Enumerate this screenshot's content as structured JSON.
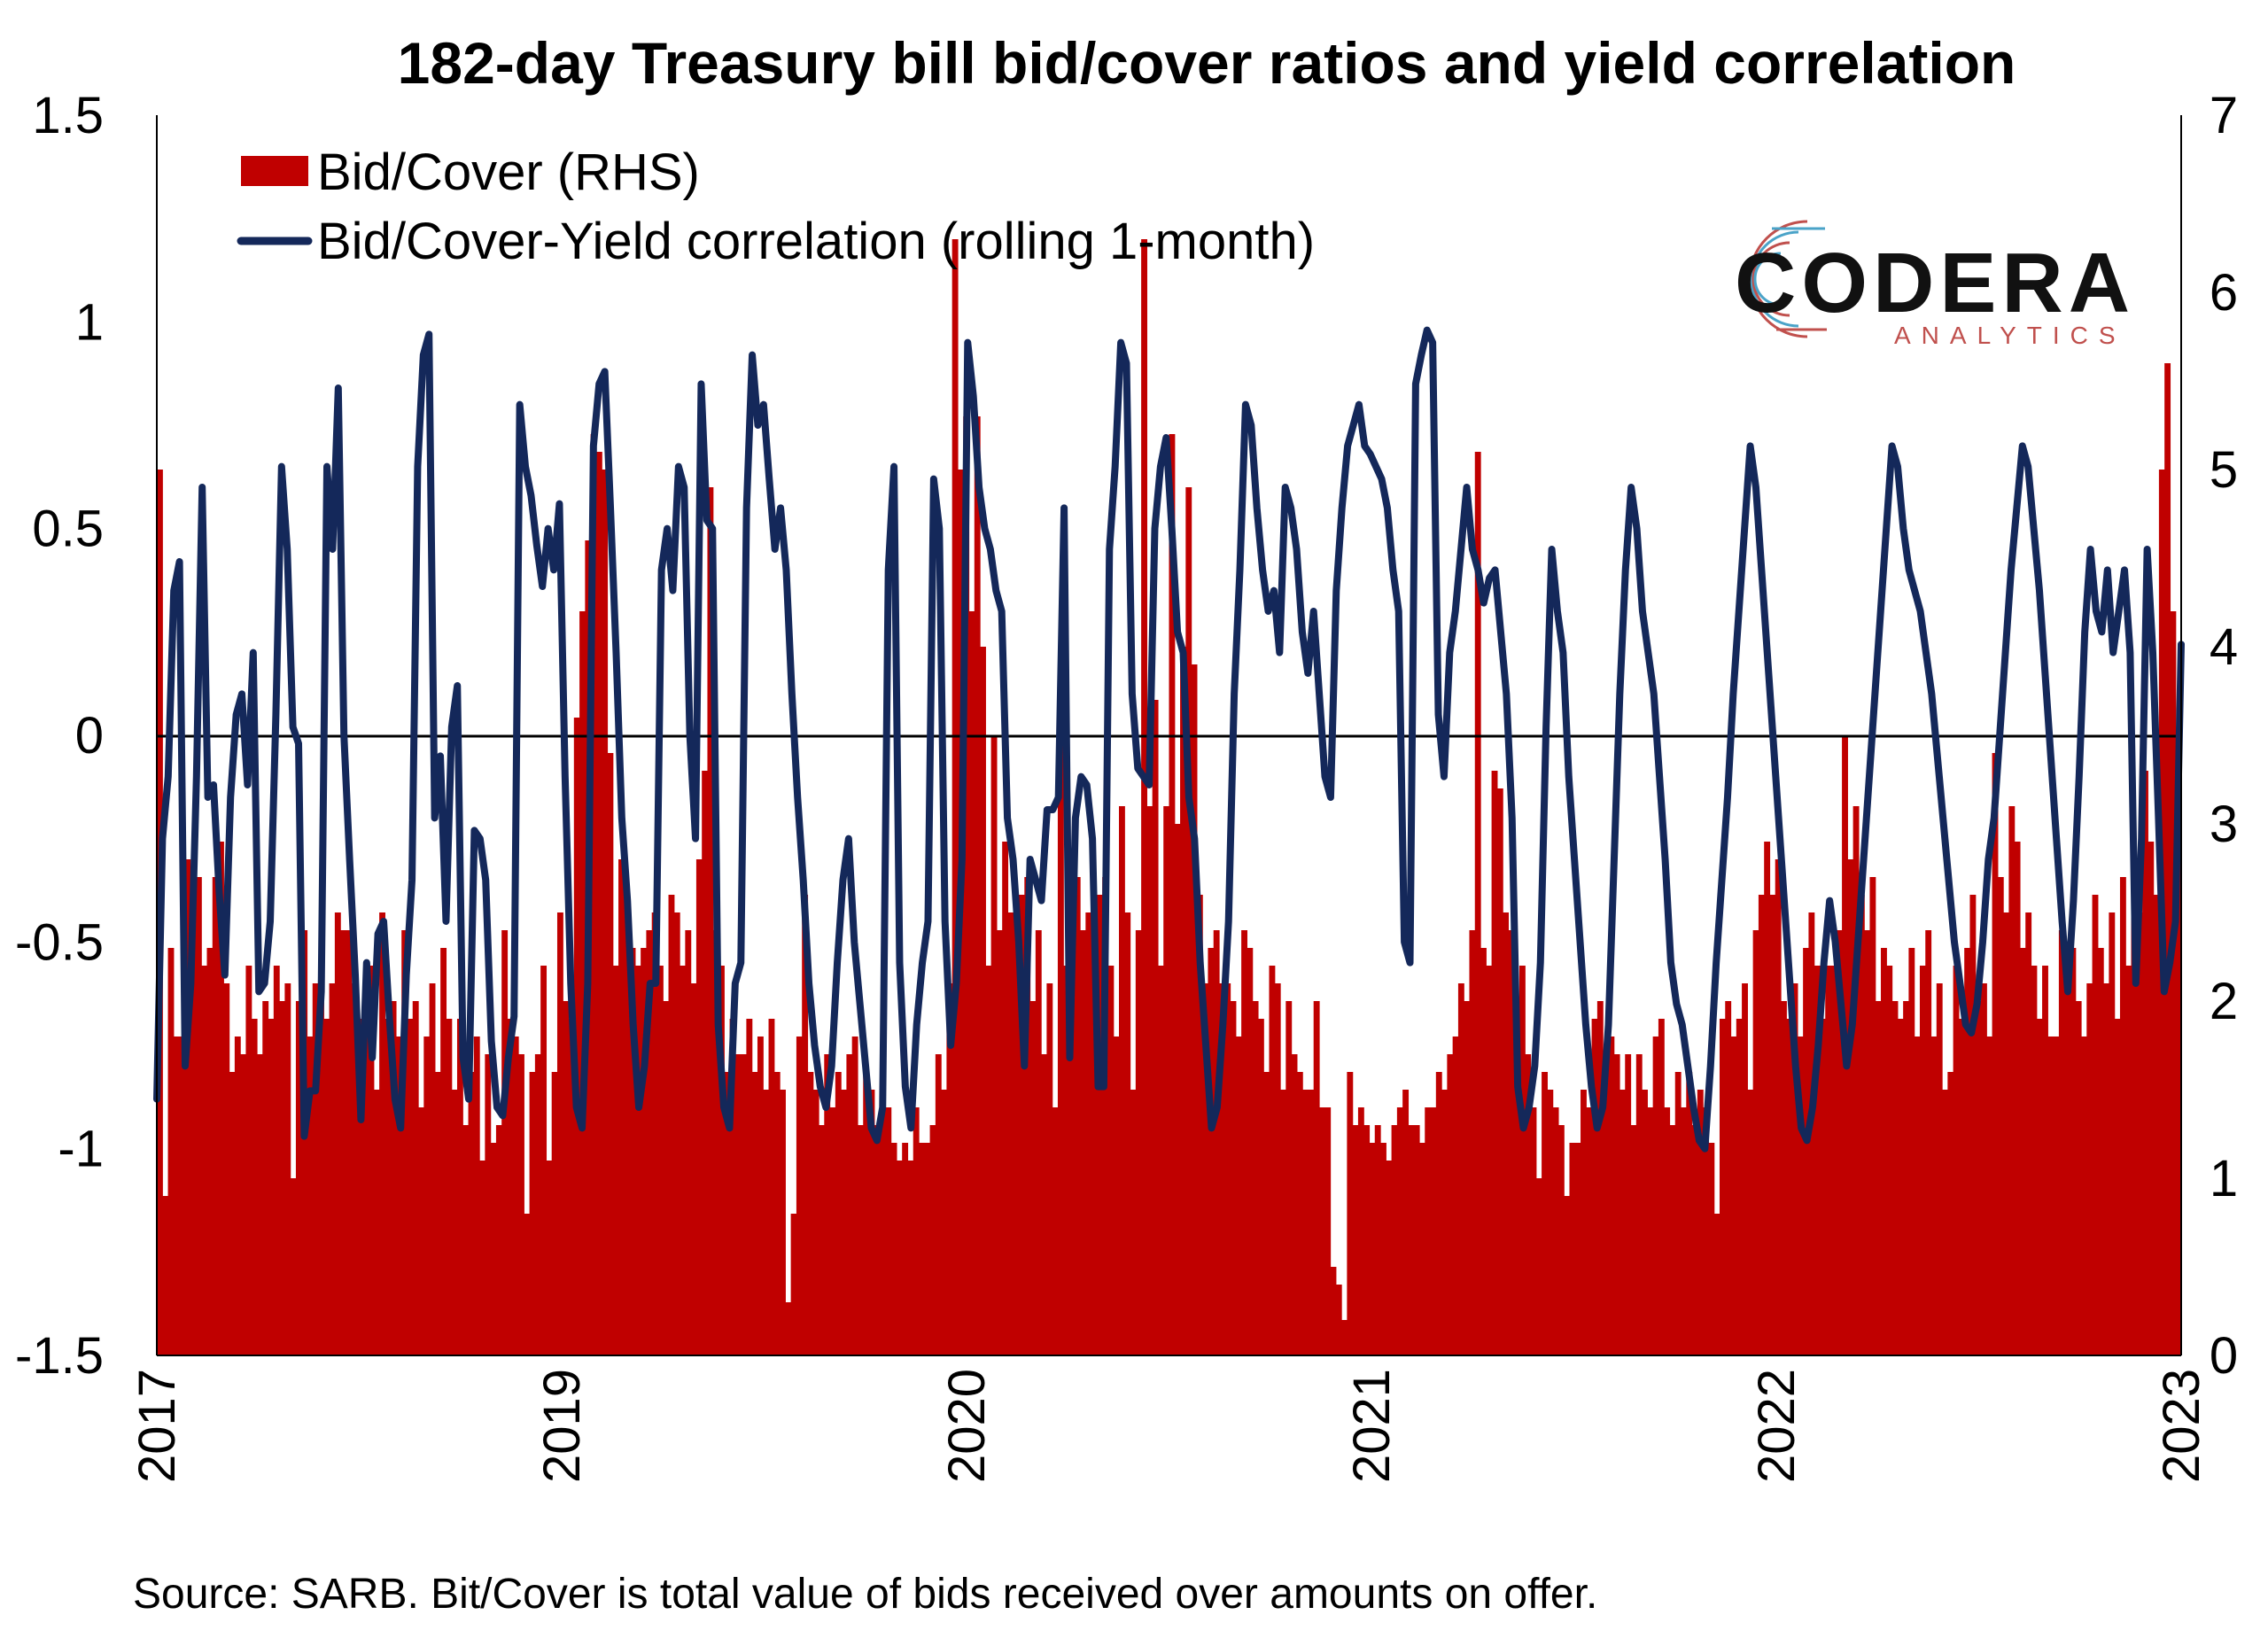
{
  "chart_data": {
    "type": "bar+line",
    "title": "182-day Treasury bill bid/cover ratios and yield correlation",
    "source": "Source: SARB. Bit/Cover is total value of bids received over amounts on offer.",
    "left_axis": {
      "ylim": [
        -1.5,
        1.5
      ],
      "ticks": [
        "1.5",
        "1",
        "0.5",
        "0",
        "-0.5",
        "-1",
        "-1.5"
      ]
    },
    "right_axis": {
      "ylim": [
        0,
        7
      ],
      "ticks": [
        "7",
        "6",
        "5",
        "4",
        "3",
        "2",
        "1",
        "0"
      ]
    },
    "x_axis": {
      "ticks": [
        "2017",
        "2019",
        "2020",
        "2021",
        "2022",
        "2023"
      ]
    },
    "legend": {
      "position": "top-left",
      "entries": [
        "Bid/Cover (RHS)",
        "Bid/Cover-Yield correlation (rolling 1-month)"
      ]
    },
    "colors": {
      "bars": "#c00000",
      "line": "#14285a",
      "zero_line": "#000000"
    },
    "series": [
      {
        "name": "Bid/Cover (RHS)",
        "axis": "right",
        "type": "bar",
        "values": [
          5.0,
          0.9,
          2.3,
          1.8,
          1.8,
          2.8,
          2.6,
          2.7,
          2.2,
          2.3,
          2.7,
          2.9,
          2.1,
          1.6,
          1.8,
          1.7,
          2.2,
          1.9,
          1.7,
          2.0,
          1.9,
          2.2,
          2.0,
          2.1,
          1.0,
          2.0,
          2.4,
          1.8,
          2.1,
          2.0,
          1.9,
          2.1,
          2.5,
          2.4,
          2.4,
          2.1,
          1.9,
          2.0,
          2.2,
          1.5,
          2.5,
          1.9,
          2.0,
          1.8,
          2.4,
          1.9,
          2.0,
          1.4,
          1.8,
          2.1,
          1.6,
          2.3,
          1.9,
          1.5,
          1.9,
          1.3,
          1.6,
          1.8,
          1.1,
          1.7,
          1.2,
          1.3,
          2.4,
          1.9,
          1.8,
          1.7,
          0.8,
          1.6,
          1.7,
          2.2,
          1.1,
          1.6,
          2.5,
          2.0,
          1.9,
          3.6,
          4.2,
          4.6,
          5.2,
          5.1,
          5.0,
          3.4,
          2.2,
          2.8,
          2.6,
          2.3,
          2.2,
          2.3,
          2.4,
          2.5,
          2.2,
          2.0,
          2.6,
          2.5,
          2.2,
          2.4,
          2.1,
          2.8,
          3.3,
          4.9,
          2.4,
          2.2,
          1.6,
          1.9,
          1.7,
          1.7,
          1.9,
          1.6,
          1.8,
          1.5,
          1.9,
          1.6,
          1.5,
          0.3,
          0.8,
          1.8,
          2.6,
          1.6,
          1.5,
          1.3,
          1.7,
          1.4,
          1.6,
          1.5,
          1.7,
          1.8,
          1.3,
          1.6,
          1.5,
          1.3,
          1.6,
          1.4,
          1.2,
          1.1,
          1.2,
          1.1,
          1.4,
          1.2,
          1.2,
          1.3,
          1.7,
          1.5,
          2.1,
          6.3,
          5.0,
          5.3,
          4.2,
          5.3,
          4.0,
          2.2,
          3.5,
          2.4,
          2.9,
          2.5,
          2.5,
          2.6,
          2.7,
          2.0,
          2.4,
          1.7,
          2.1,
          1.4,
          3.8,
          2.2,
          2.3,
          2.7,
          2.4,
          2.5,
          2.3,
          2.6,
          2.7,
          2.2,
          1.8,
          3.1,
          2.5,
          1.5,
          2.4,
          6.3,
          3.1,
          3.7,
          2.2,
          3.1,
          5.2,
          3.0,
          4.0,
          4.9,
          3.9,
          2.6,
          2.1,
          2.3,
          2.4,
          2.1,
          2.1,
          2.0,
          1.8,
          2.4,
          2.3,
          2.0,
          1.9,
          1.6,
          2.2,
          2.1,
          1.5,
          2.0,
          1.7,
          1.6,
          1.5,
          1.5,
          2.0,
          1.4,
          1.4,
          0.5,
          0.4,
          0.2,
          1.6,
          1.3,
          1.4,
          1.3,
          1.2,
          1.3,
          1.2,
          1.1,
          1.3,
          1.4,
          1.5,
          1.3,
          1.3,
          1.2,
          1.4,
          1.4,
          1.6,
          1.5,
          1.7,
          1.8,
          2.1,
          2.0,
          2.4,
          5.1,
          2.3,
          2.2,
          3.3,
          3.2,
          2.5,
          2.4,
          1.6,
          2.2,
          1.7,
          1.4,
          1.0,
          1.6,
          1.5,
          1.4,
          1.3,
          0.9,
          1.2,
          1.2,
          1.5,
          1.4,
          1.9,
          2.0,
          1.6,
          1.8,
          1.7,
          1.5,
          1.7,
          1.3,
          1.7,
          1.5,
          1.4,
          1.8,
          1.9,
          1.4,
          1.3,
          1.6,
          1.4,
          1.6,
          1.3,
          1.5,
          1.4,
          1.2,
          0.8,
          1.9,
          2.0,
          1.8,
          1.9,
          2.1,
          1.5,
          2.4,
          2.6,
          2.9,
          2.6,
          2.8,
          2.0,
          1.9,
          2.1,
          1.8,
          2.3,
          2.5,
          2.2,
          1.9,
          2.2,
          2.2,
          2.4,
          3.5,
          2.8,
          3.1,
          2.6,
          2.4,
          2.7,
          2.0,
          2.3,
          2.2,
          2.0,
          1.9,
          2.0,
          2.3,
          1.8,
          2.2,
          2.4,
          1.8,
          2.1,
          1.5,
          1.6,
          2.2,
          1.9,
          2.3,
          2.6,
          2.0,
          2.1,
          1.8,
          3.4,
          2.7,
          2.5,
          3.1,
          2.9,
          2.3,
          2.5,
          2.2,
          1.9,
          2.2,
          1.8,
          1.8,
          2.4,
          2.2,
          2.3,
          2.0,
          1.8,
          2.1,
          2.6,
          2.3,
          2.1,
          2.5,
          1.9,
          2.7,
          2.2,
          2.6,
          2.5,
          3.3,
          2.9,
          2.6,
          5.0,
          5.6,
          4.2,
          3.0
        ]
      },
      {
        "name": "Bid/Cover-Yield correlation (rolling 1-month)",
        "axis": "left",
        "type": "line",
        "values": [
          -0.88,
          -0.25,
          -0.1,
          0.35,
          0.42,
          -0.8,
          -0.6,
          -0.1,
          0.6,
          -0.15,
          -0.12,
          -0.38,
          -0.58,
          -0.15,
          0.05,
          0.1,
          -0.12,
          0.2,
          -0.62,
          -0.6,
          -0.45,
          0.05,
          0.65,
          0.45,
          0.02,
          -0.02,
          -0.97,
          -0.86,
          -0.86,
          -0.62,
          0.65,
          0.45,
          0.84,
          0.0,
          -0.3,
          -0.58,
          -0.93,
          -0.55,
          -0.78,
          -0.48,
          -0.45,
          -0.68,
          -0.88,
          -0.95,
          -0.58,
          -0.35,
          0.65,
          0.92,
          0.97,
          -0.2,
          -0.05,
          -0.45,
          0.02,
          0.12,
          -0.78,
          -0.88,
          -0.23,
          -0.25,
          -0.35,
          -0.74,
          -0.9,
          -0.92,
          -0.78,
          -0.68,
          0.8,
          0.65,
          0.58,
          0.46,
          0.36,
          0.5,
          0.4,
          0.56,
          -0.1,
          -0.6,
          -0.9,
          -0.95,
          -0.6,
          0.7,
          0.85,
          0.88,
          0.55,
          0.2,
          -0.2,
          -0.4,
          -0.7,
          -0.9,
          -0.8,
          -0.6,
          -0.6,
          0.4,
          0.5,
          0.35,
          0.65,
          0.6,
          0.0,
          -0.25,
          0.85,
          0.52,
          0.5,
          -0.7,
          -0.9,
          -0.95,
          -0.6,
          -0.55,
          0.55,
          0.92,
          0.75,
          0.8,
          0.62,
          0.45,
          0.55,
          0.4,
          0.1,
          -0.15,
          -0.35,
          -0.6,
          -0.75,
          -0.85,
          -0.9,
          -0.8,
          -0.55,
          -0.35,
          -0.25,
          -0.5,
          -0.65,
          -0.8,
          -0.95,
          -0.98,
          -0.9,
          0.4,
          0.65,
          -0.55,
          -0.85,
          -0.95,
          -0.7,
          -0.55,
          -0.45,
          0.62,
          0.5,
          -0.45,
          -0.75,
          -0.6,
          -0.3,
          0.95,
          0.82,
          0.6,
          0.5,
          0.45,
          0.35,
          0.3,
          -0.2,
          -0.3,
          -0.5,
          -0.8,
          -0.3,
          -0.35,
          -0.4,
          -0.18,
          -0.18,
          -0.15,
          0.55,
          -0.78,
          -0.2,
          -0.1,
          -0.12,
          -0.25,
          -0.85,
          -0.85,
          0.45,
          0.65,
          0.95,
          0.9,
          0.1,
          -0.08,
          -0.1,
          -0.12,
          0.5,
          0.65,
          0.72,
          0.5,
          0.25,
          0.2,
          -0.15,
          -0.25,
          -0.55,
          -0.75,
          -0.95,
          -0.9,
          -0.7,
          -0.45,
          0.1,
          0.4,
          0.8,
          0.75,
          0.55,
          0.4,
          0.3,
          0.35,
          0.2,
          0.6,
          0.55,
          0.45,
          0.25,
          0.15,
          0.3,
          0.1,
          -0.1,
          -0.15,
          0.35,
          0.55,
          0.7,
          0.75,
          0.8,
          0.7,
          0.68,
          0.65,
          0.62,
          0.55,
          0.4,
          0.3,
          -0.5,
          -0.55,
          0.85,
          0.92,
          0.98,
          0.95,
          0.05,
          -0.1,
          0.2,
          0.3,
          0.45,
          0.6,
          0.45,
          0.4,
          0.32,
          0.38,
          0.4,
          0.25,
          0.1,
          -0.2,
          -0.85,
          -0.95,
          -0.9,
          -0.8,
          -0.55,
          0.02,
          0.45,
          0.3,
          0.2,
          -0.1,
          -0.3,
          -0.5,
          -0.7,
          -0.85,
          -0.95,
          -0.9,
          -0.7,
          -0.3,
          0.1,
          0.4,
          0.6,
          0.5,
          0.3,
          0.2,
          0.1,
          -0.1,
          -0.3,
          -0.55,
          -0.65,
          -0.7,
          -0.8,
          -0.9,
          -0.98,
          -1.0,
          -0.8,
          -0.55,
          -0.35,
          -0.15,
          0.1,
          0.3,
          0.5,
          0.7,
          0.6,
          0.4,
          0.2,
          0.0,
          -0.2,
          -0.4,
          -0.6,
          -0.8,
          -0.95,
          -0.98,
          -0.9,
          -0.75,
          -0.55,
          -0.4,
          -0.5,
          -0.65,
          -0.8,
          -0.7,
          -0.5,
          -0.3,
          -0.1,
          0.1,
          0.3,
          0.5,
          0.7,
          0.65,
          0.5,
          0.4,
          0.35,
          0.3,
          0.2,
          0.1,
          -0.05,
          -0.2,
          -0.35,
          -0.5,
          -0.6,
          -0.7,
          -0.72,
          -0.65,
          -0.5,
          -0.3,
          -0.2,
          0.0,
          0.2,
          0.4,
          0.55,
          0.7,
          0.65,
          0.5,
          0.35,
          0.15,
          -0.05,
          -0.25,
          -0.45,
          -0.62,
          -0.4,
          -0.1,
          0.25,
          0.45,
          0.3,
          0.25,
          0.4,
          0.2,
          0.3,
          0.4,
          0.2,
          -0.6,
          -0.25,
          0.45,
          0.2,
          -0.2,
          -0.62,
          -0.55,
          -0.45,
          0.22
        ]
      }
    ]
  },
  "logo": {
    "main": "CODERA",
    "sub": "ANALYTICS"
  }
}
